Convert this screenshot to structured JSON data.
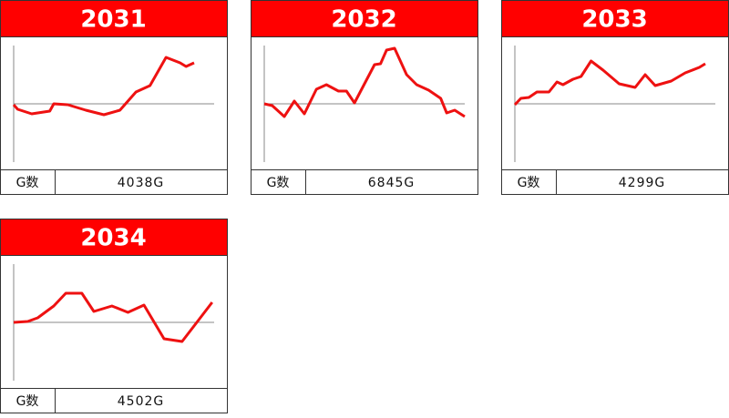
{
  "chart_data": [
    {
      "type": "line",
      "title": "2031",
      "footer_label": "G数",
      "footer_value": "4038G",
      "color": "#ee1111",
      "xlim": [
        0,
        100
      ],
      "ylim": [
        -64,
        64
      ],
      "x": [
        0,
        2,
        9,
        18,
        20,
        27,
        36,
        45,
        53,
        61,
        68,
        76,
        83,
        86,
        90
      ],
      "values": [
        -1,
        -6,
        -11,
        -8,
        0,
        -1,
        -7,
        -12,
        -7,
        13,
        20,
        51,
        45,
        41,
        45
      ]
    },
    {
      "type": "line",
      "title": "2032",
      "footer_label": "G数",
      "footer_value": "6845G",
      "color": "#ee1111",
      "xlim": [
        0,
        100
      ],
      "ylim": [
        -64,
        64
      ],
      "x": [
        0,
        4,
        10,
        15,
        20,
        26,
        31,
        37,
        41,
        45,
        50,
        55,
        58,
        61,
        65,
        71,
        76,
        82,
        88,
        91,
        95,
        100
      ],
      "values": [
        0,
        -2,
        -14,
        3,
        -11,
        16,
        21,
        14,
        14,
        1,
        22,
        43,
        44,
        59,
        61,
        32,
        21,
        15,
        6,
        -10,
        -7,
        -14
      ]
    },
    {
      "type": "line",
      "title": "2033",
      "footer_label": "G数",
      "footer_value": "4299G",
      "color": "#ee1111",
      "xlim": [
        0,
        100
      ],
      "ylim": [
        -64,
        64
      ],
      "x": [
        0,
        3,
        7,
        11,
        17,
        21,
        24,
        29,
        33,
        38,
        44,
        52,
        60,
        65,
        70,
        78,
        85,
        92,
        95
      ],
      "values": [
        -1,
        6,
        7,
        13,
        13,
        24,
        21,
        27,
        30,
        47,
        37,
        22,
        18,
        32,
        20,
        25,
        34,
        40,
        44
      ]
    },
    {
      "type": "line",
      "title": "2034",
      "footer_label": "G数",
      "footer_value": "4502G",
      "color": "#ee1111",
      "xlim": [
        0,
        100
      ],
      "ylim": [
        -64,
        64
      ],
      "x": [
        0,
        7,
        12,
        20,
        26,
        34,
        40,
        49,
        57,
        65,
        75,
        84,
        91,
        99
      ],
      "values": [
        0,
        1,
        5,
        18,
        32,
        32,
        12,
        18,
        11,
        19,
        -18,
        -21,
        -1,
        22
      ]
    }
  ]
}
